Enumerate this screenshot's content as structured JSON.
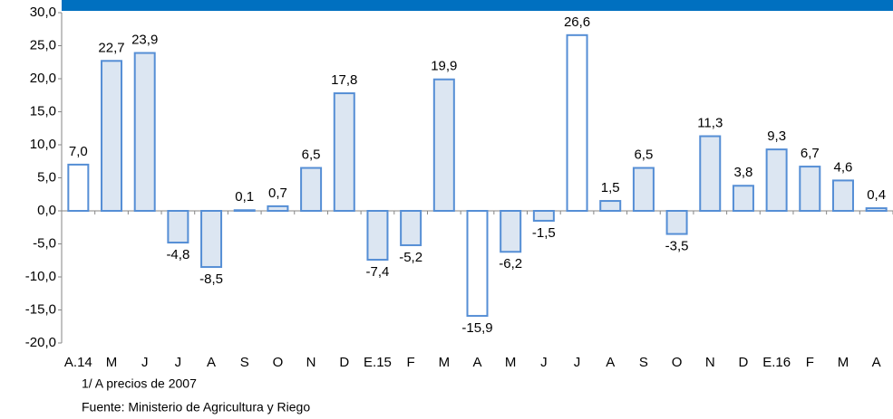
{
  "chart_data": {
    "type": "bar",
    "categories": [
      "A.14",
      "M",
      "J",
      "J",
      "A",
      "S",
      "O",
      "N",
      "D",
      "E.15",
      "F",
      "M",
      "A",
      "M",
      "J",
      "J",
      "A",
      "S",
      "O",
      "N",
      "D",
      "E.16",
      "F",
      "M",
      "A"
    ],
    "values": [
      7.0,
      22.7,
      23.9,
      -4.8,
      -8.5,
      0.1,
      0.7,
      6.5,
      17.8,
      -7.4,
      -5.2,
      19.9,
      -15.9,
      -6.2,
      -1.5,
      26.6,
      1.5,
      6.5,
      -3.5,
      11.3,
      3.8,
      9.3,
      6.7,
      4.6,
      0.4
    ],
    "value_labels": [
      "7,0",
      "22,7",
      "23,9",
      "-4,8",
      "-8,5",
      "0,1",
      "0,7",
      "6,5",
      "17,8",
      "-7,4",
      "-5,2",
      "19,9",
      "-15,9",
      "-6,2",
      "-1,5",
      "26,6",
      "1,5",
      "6,5",
      "-3,5",
      "11,3",
      "3,8",
      "9,3",
      "6,7",
      "4,6",
      "0,4"
    ],
    "colors": [
      "#ffffff",
      "#dce6f2",
      "#dce6f2",
      "#dce6f2",
      "#dce6f2",
      "#dce6f2",
      "#dce6f2",
      "#dce6f2",
      "#dce6f2",
      "#dce6f2",
      "#dce6f2",
      "#dce6f2",
      "#ffffff",
      "#dce6f2",
      "#dce6f2",
      "#ffffff",
      "#dce6f2",
      "#dce6f2",
      "#dce6f2",
      "#dce6f2",
      "#dce6f2",
      "#dce6f2",
      "#dce6f2",
      "#dce6f2",
      "#dce6f2"
    ],
    "border_color": "#558ed5",
    "ylim": [
      -20,
      30
    ],
    "yticks": [
      {
        "value": -20,
        "label": "-20,0"
      },
      {
        "value": -15,
        "label": "-15,0"
      },
      {
        "value": -10,
        "label": "-10,0"
      },
      {
        "value": -5,
        "label": "-5,0"
      },
      {
        "value": 0,
        "label": "0,0"
      },
      {
        "value": 5,
        "label": "5,0"
      },
      {
        "value": 10,
        "label": "10,0"
      },
      {
        "value": 15,
        "label": "15,0"
      },
      {
        "value": 20,
        "label": "20,0"
      },
      {
        "value": 25,
        "label": "25,0"
      },
      {
        "value": 30,
        "label": "30,0"
      }
    ],
    "notes": [
      "1/ A precios de 2007",
      "Fuente: Ministerio de Agricultura y Riego"
    ]
  }
}
